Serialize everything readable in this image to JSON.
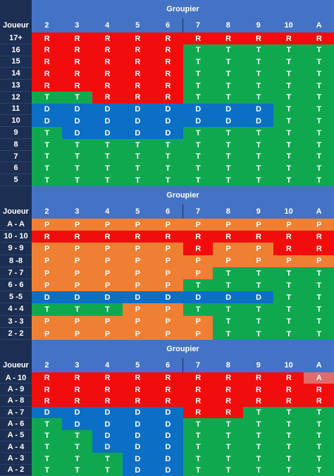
{
  "tables": [
    {
      "title": "Groupier",
      "row_header": "Joueur",
      "columns": [
        "2",
        "3",
        "4",
        "5",
        "6",
        "7",
        "8",
        "9",
        "10",
        "A"
      ],
      "rows": [
        {
          "label": "17+",
          "cells": [
            "R",
            "R",
            "R",
            "R",
            "R",
            "R",
            "R",
            "R",
            "R",
            "R"
          ]
        },
        {
          "label": "16",
          "cells": [
            "R",
            "R",
            "R",
            "R",
            "R",
            "T",
            "T",
            "T",
            "T",
            "T"
          ]
        },
        {
          "label": "15",
          "cells": [
            "R",
            "R",
            "R",
            "R",
            "R",
            "T",
            "T",
            "T",
            "T",
            "T"
          ]
        },
        {
          "label": "14",
          "cells": [
            "R",
            "R",
            "R",
            "R",
            "R",
            "T",
            "T",
            "T",
            "T",
            "T"
          ]
        },
        {
          "label": "13",
          "cells": [
            "R",
            "R",
            "R",
            "R",
            "R",
            "T",
            "T",
            "T",
            "T",
            "T"
          ]
        },
        {
          "label": "12",
          "cells": [
            "T",
            "T",
            "R",
            "R",
            "R",
            "T",
            "T",
            "T",
            "T",
            "T"
          ]
        },
        {
          "label": "11",
          "cells": [
            "D",
            "D",
            "D",
            "D",
            "D",
            "D",
            "D",
            "D",
            "T",
            "T"
          ]
        },
        {
          "label": "10",
          "cells": [
            "D",
            "D",
            "D",
            "D",
            "D",
            "D",
            "D",
            "D",
            "T",
            "T"
          ]
        },
        {
          "label": "9",
          "cells": [
            "T",
            "D",
            "D",
            "D",
            "D",
            "T",
            "T",
            "T",
            "T",
            "T"
          ]
        },
        {
          "label": "8",
          "cells": [
            "T",
            "T",
            "T",
            "T",
            "T",
            "T",
            "T",
            "T",
            "T",
            "T"
          ]
        },
        {
          "label": "7",
          "cells": [
            "T",
            "T",
            "T",
            "T",
            "T",
            "T",
            "T",
            "T",
            "T",
            "T"
          ]
        },
        {
          "label": "6",
          "cells": [
            "T",
            "T",
            "T",
            "T",
            "T",
            "T",
            "T",
            "T",
            "T",
            "T"
          ]
        },
        {
          "label": "5",
          "cells": [
            "T",
            "T",
            "T",
            "T",
            "T",
            "T",
            "T",
            "T",
            "T",
            "T"
          ]
        }
      ]
    },
    {
      "title": "Groupier",
      "row_header": "Joueur",
      "columns": [
        "2",
        "3",
        "4",
        "5",
        "6",
        "7",
        "8",
        "9",
        "10",
        "A"
      ],
      "rows": [
        {
          "label": "A - A",
          "cells": [
            "P",
            "P",
            "P",
            "P",
            "P",
            "P",
            "P",
            "P",
            "P",
            "P"
          ]
        },
        {
          "label": "10 - 10",
          "cells": [
            "R",
            "R",
            "R",
            "R",
            "R",
            "R",
            "R",
            "R",
            "R",
            "R"
          ]
        },
        {
          "label": "9 - 9",
          "cells": [
            "P",
            "P",
            "P",
            "P",
            "P",
            "R",
            "P",
            "P",
            "R",
            "R"
          ]
        },
        {
          "label": "8 -8",
          "cells": [
            "P",
            "P",
            "P",
            "P",
            "P",
            "P",
            "P",
            "P",
            "P",
            "P"
          ]
        },
        {
          "label": "7 - 7",
          "cells": [
            "P",
            "P",
            "P",
            "P",
            "P",
            "P",
            "T",
            "T",
            "T",
            "T"
          ]
        },
        {
          "label": "6 - 6",
          "cells": [
            "P",
            "P",
            "P",
            "P",
            "P",
            "T",
            "T",
            "T",
            "T",
            "T"
          ]
        },
        {
          "label": "5 -5",
          "cells": [
            "D",
            "D",
            "D",
            "D",
            "D",
            "D",
            "D",
            "D",
            "T",
            "T"
          ]
        },
        {
          "label": "4 - 4",
          "cells": [
            "T",
            "T",
            "T",
            "P",
            "P",
            "T",
            "T",
            "T",
            "T",
            "T"
          ]
        },
        {
          "label": "3 - 3",
          "cells": [
            "P",
            "P",
            "P",
            "P",
            "P",
            "P",
            "T",
            "T",
            "T",
            "T"
          ]
        },
        {
          "label": "2 - 2",
          "cells": [
            "P",
            "P",
            "P",
            "P",
            "P",
            "P",
            "T",
            "T",
            "T",
            "T"
          ]
        }
      ]
    },
    {
      "title": "Groupier",
      "row_header": "Joueur",
      "columns": [
        "2",
        "3",
        "4",
        "5",
        "6",
        "7",
        "8",
        "9",
        "10",
        "A"
      ],
      "rows": [
        {
          "label": "A - 10",
          "cells": [
            "R",
            "R",
            "R",
            "R",
            "R",
            "R",
            "R",
            "R",
            "R",
            "A"
          ]
        },
        {
          "label": "A - 9",
          "cells": [
            "R",
            "R",
            "R",
            "R",
            "R",
            "R",
            "R",
            "R",
            "R",
            "R"
          ]
        },
        {
          "label": "A - 8",
          "cells": [
            "R",
            "R",
            "R",
            "R",
            "R",
            "R",
            "R",
            "R",
            "R",
            "R"
          ]
        },
        {
          "label": "A - 7",
          "cells": [
            "D",
            "D",
            "D",
            "D",
            "D",
            "R",
            "R",
            "T",
            "T",
            "T"
          ]
        },
        {
          "label": "A - 6",
          "cells": [
            "T",
            "D",
            "D",
            "D",
            "D",
            "T",
            "T",
            "T",
            "T",
            "T"
          ]
        },
        {
          "label": "A - 5",
          "cells": [
            "T",
            "T",
            "D",
            "D",
            "D",
            "T",
            "T",
            "T",
            "T",
            "T"
          ]
        },
        {
          "label": "A - 4",
          "cells": [
            "T",
            "T",
            "D",
            "D",
            "D",
            "T",
            "T",
            "T",
            "T",
            "T"
          ]
        },
        {
          "label": "A - 3",
          "cells": [
            "T",
            "T",
            "T",
            "D",
            "D",
            "T",
            "T",
            "T",
            "T",
            "T"
          ]
        },
        {
          "label": "A - 2",
          "cells": [
            "T",
            "T",
            "T",
            "D",
            "D",
            "T",
            "T",
            "T",
            "T",
            "T"
          ]
        }
      ]
    }
  ]
}
